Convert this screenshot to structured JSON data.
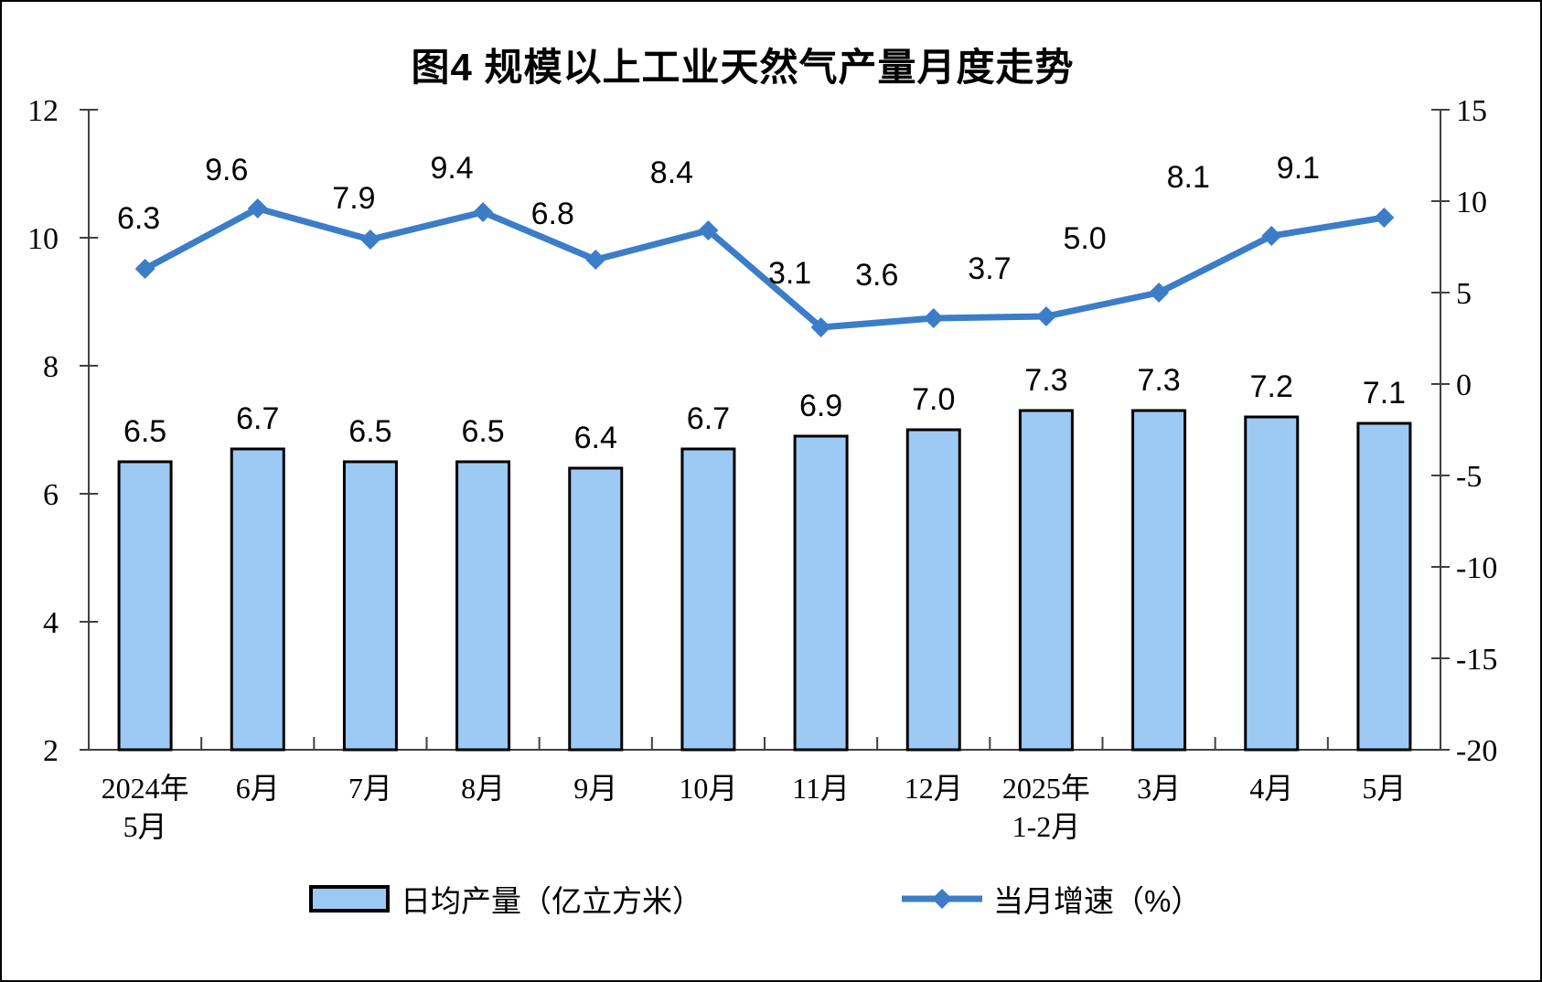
{
  "title": "图4 规模以上工业天然气产量月度走势",
  "legend": {
    "bar_label": "日均产量（亿立方米）",
    "line_label": "当月增速（%）"
  },
  "colors": {
    "bar_fill": "#9DC9F5",
    "bar_border": "#000000",
    "line": "#3B7DC8",
    "axis": "#404040",
    "text": "#000000"
  },
  "chart_data": {
    "type": "combo-bar-line",
    "title": "图4 规模以上工业天然气产量月度走势",
    "categories": [
      "2024年\n5月",
      "6月",
      "7月",
      "8月",
      "9月",
      "10月",
      "11月",
      "12月",
      "2025年\n1-2月",
      "3月",
      "4月",
      "5月"
    ],
    "series": [
      {
        "name": "日均产量（亿立方米）",
        "type": "bar",
        "axis": "left",
        "values": [
          6.5,
          6.7,
          6.5,
          6.5,
          6.4,
          6.7,
          6.9,
          7.0,
          7.3,
          7.3,
          7.2,
          7.1
        ],
        "color": "#9DC9F5",
        "border_color": "#000000"
      },
      {
        "name": "当月增速（%）",
        "type": "line",
        "axis": "right",
        "values": [
          6.3,
          9.6,
          7.9,
          9.4,
          6.8,
          8.4,
          3.1,
          3.6,
          3.7,
          5.0,
          8.1,
          9.1
        ],
        "color": "#3B7DC8",
        "marker": "diamond"
      }
    ],
    "left_axis": {
      "min": 2,
      "max": 12,
      "ticks": [
        12,
        10,
        8,
        6,
        4,
        2
      ]
    },
    "right_axis": {
      "min": -20,
      "max": 15,
      "ticks": [
        15,
        10,
        5,
        0,
        -5,
        -10,
        -15,
        -20
      ]
    },
    "grid": false,
    "legend_position": "bottom",
    "data_labels": true
  }
}
